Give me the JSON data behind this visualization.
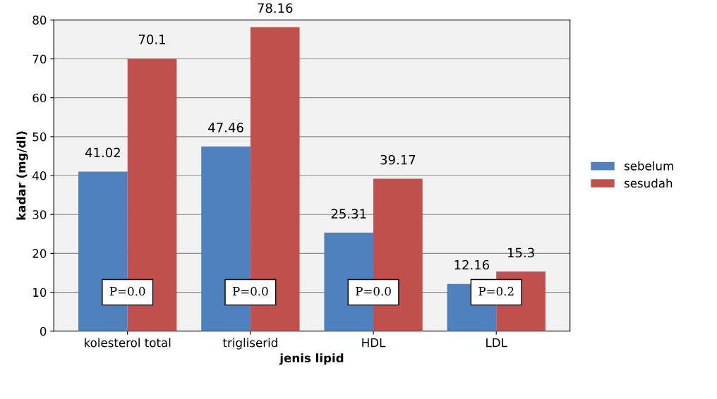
{
  "chart_data": {
    "type": "bar",
    "xlabel": "jenis lipid",
    "ylabel": "kadar (mg/dl)",
    "categories": [
      "kolesterol total",
      "trigliserid",
      "HDL",
      "LDL"
    ],
    "series": [
      {
        "name": "sebelum",
        "color": "#4f81bd",
        "values": [
          41.02,
          47.46,
          25.31,
          12.16
        ]
      },
      {
        "name": "sesudah",
        "color": "#c0504d",
        "values": [
          70.1,
          78.16,
          39.17,
          15.3
        ]
      }
    ],
    "ylim": [
      0,
      80
    ],
    "yticks": [
      0,
      10,
      20,
      30,
      40,
      50,
      60,
      70,
      80
    ],
    "grid": "y",
    "legend": "right",
    "data_labels": true,
    "annotations": [
      {
        "text": "P=0.0",
        "x": "kolesterol total",
        "y": 10
      },
      {
        "text": "P=0.0",
        "x": "trigliserid",
        "y": 10
      },
      {
        "text": "P=0.0",
        "x": "HDL",
        "y": 10
      },
      {
        "text": "P=0.2",
        "x": "LDL",
        "y": 10
      }
    ]
  }
}
